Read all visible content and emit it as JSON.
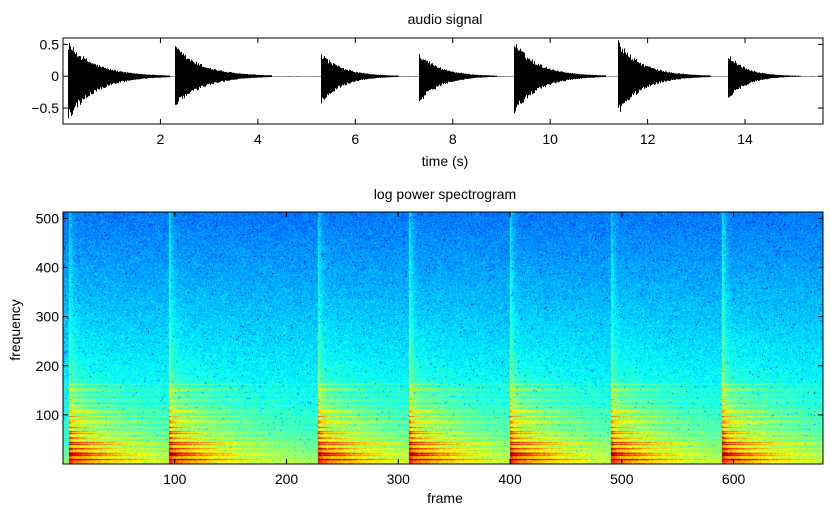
{
  "chart_data": [
    {
      "type": "line",
      "title": "audio signal",
      "xlabel": "time (s)",
      "ylabel": "",
      "xlim": [
        0,
        15.6
      ],
      "ylim": [
        -0.75,
        0.6
      ],
      "xticks": [
        2,
        4,
        6,
        8,
        10,
        12,
        14
      ],
      "yticks": [
        0.5,
        0,
        -0.5
      ],
      "ytick_labels": [
        "0.5",
        "0",
        "−0.5"
      ],
      "series": [
        {
          "line_color": "#000000",
          "onsets": [
            {
              "t": 0.1,
              "peak_pos": 0.56,
              "peak_neg": -0.72,
              "decay_s": 0.9,
              "duration_s": 2.1
            },
            {
              "t": 2.3,
              "peak_pos": 0.5,
              "peak_neg": -0.52,
              "decay_s": 0.9,
              "duration_s": 2.0
            },
            {
              "t": 5.3,
              "peak_pos": 0.38,
              "peak_neg": -0.45,
              "decay_s": 0.7,
              "duration_s": 1.6
            },
            {
              "t": 7.3,
              "peak_pos": 0.4,
              "peak_neg": -0.45,
              "decay_s": 0.7,
              "duration_s": 1.6
            },
            {
              "t": 9.25,
              "peak_pos": 0.58,
              "peak_neg": -0.65,
              "decay_s": 0.8,
              "duration_s": 1.9
            },
            {
              "t": 11.4,
              "peak_pos": 0.57,
              "peak_neg": -0.62,
              "decay_s": 0.8,
              "duration_s": 1.9
            },
            {
              "t": 13.65,
              "peak_pos": 0.37,
              "peak_neg": -0.4,
              "decay_s": 0.6,
              "duration_s": 1.5
            }
          ]
        }
      ],
      "grid": false
    },
    {
      "type": "heatmap",
      "title": "log power spectrogram",
      "xlabel": "frame",
      "ylabel": "frequency",
      "xlim": [
        0,
        680
      ],
      "ylim": [
        0,
        513
      ],
      "xticks": [
        100,
        200,
        300,
        400,
        500,
        600
      ],
      "yticks": [
        100,
        200,
        300,
        400,
        500
      ],
      "colormap": "jet",
      "onset_frames": [
        5,
        95,
        228,
        310,
        400,
        490,
        590
      ],
      "grid": false
    }
  ]
}
